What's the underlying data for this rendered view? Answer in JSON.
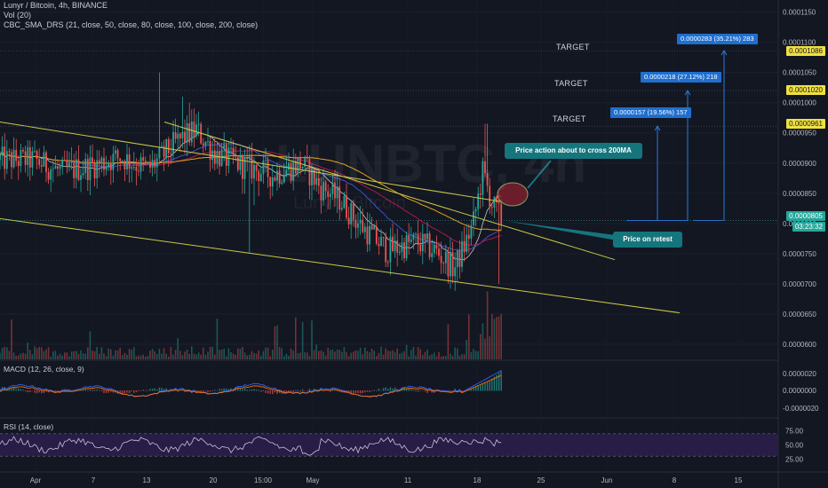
{
  "header": {
    "title": "Lunyr / Bitcoin, 4h, BINANCE",
    "vol": "Vol (20)",
    "sma": "CBC_SMA_DRS (21, close, 50, close, 80, close, 100, close, 200, close)"
  },
  "watermark": {
    "symbol": "LUNBTC, 4h",
    "name": "Lunyr / Bitcoin"
  },
  "macd_label": "MACD (12, 26, close, 9)",
  "rsi_label": "RSI (14, close)",
  "price_tags": {
    "t1086": "0.0001086",
    "t1020": "0.0001020",
    "t961": "0.0000961",
    "t805": "0.0000805",
    "countdown": "03:23:32"
  },
  "targets": [
    "TARGET",
    "TARGET",
    "TARGET"
  ],
  "measures": [
    "0.0000283 (35.21%) 283",
    "0.0000218 (27.12%) 218",
    "0.0000157 (19.56%) 157"
  ],
  "callouts": {
    "ma": "Price action about to cross 200MA",
    "retest": "Price on retest"
  },
  "colors": {
    "background": "#131722",
    "up": "#26a69a",
    "down": "#ef5350",
    "trendline": "#c9c948",
    "callout": "#15757d",
    "measure": "#1e6fd0",
    "rsi_band": "#2b1e4a",
    "macd": "#2962ff",
    "signal": "#ff6d00"
  },
  "chart_data": [
    {
      "type": "candlestick",
      "title": "Lunyr / Bitcoin, 4h, BINANCE",
      "x_ticks": [
        "Apr",
        "7",
        "13",
        "20",
        "15:00",
        "May",
        "11",
        "18",
        "25",
        "Jun",
        "8",
        "15"
      ],
      "y_ticks": [
        "0.0000600",
        "0.0000650",
        "0.0000700",
        "0.0000750",
        "0.0000800",
        "0.0000850",
        "0.0000900",
        "0.0000950",
        "0.0001000",
        "0.0001050",
        "0.0001100",
        "0.0001150"
      ],
      "ylim": [
        5.75e-05,
        0.000117
      ],
      "close_path": [
        [
          "Apr 1",
          9.05e-05
        ],
        [
          "Apr 4",
          8.85e-05
        ],
        [
          "Apr 7",
          8.95e-05
        ],
        [
          "Apr 10",
          9.1e-05
        ],
        [
          "Apr 13",
          8.9e-05
        ],
        [
          "Apr 16",
          9.35e-05
        ],
        [
          "Apr 18",
          9.55e-05
        ],
        [
          "Apr 20",
          9.15e-05
        ],
        [
          "Apr 23",
          8.95e-05
        ],
        [
          "Apr 26",
          8.8e-05
        ],
        [
          "Apr 29",
          9e-05
        ],
        [
          "May 1",
          8.6e-05
        ],
        [
          "May 3",
          8.4e-05
        ],
        [
          "May 5",
          8e-05
        ],
        [
          "May 8",
          7.55e-05
        ],
        [
          "May 11",
          7.7e-05
        ],
        [
          "May 13",
          7.55e-05
        ],
        [
          "May 15",
          7.25e-05
        ],
        [
          "May 16",
          7.6e-05
        ],
        [
          "May 17",
          8e-05
        ],
        [
          "May 18",
          8.85e-05
        ],
        [
          "May 19",
          8.3e-05
        ],
        [
          "May 20",
          8.05e-05
        ]
      ],
      "last_price": 8.05e-05,
      "targets": [
        9.61e-05,
        0.000102,
        0.0001086
      ],
      "measurements": [
        {
          "label": "0.0000157 (19.56%) 157",
          "change": 1.57e-05,
          "percent": 19.56
        },
        {
          "label": "0.0000218 (27.12%) 218",
          "change": 2.18e-05,
          "percent": 27.12
        },
        {
          "label": "0.0000283 (35.21%) 283",
          "change": 2.83e-05,
          "percent": 35.21
        }
      ]
    },
    {
      "type": "line",
      "title": "MACD (12, 26, close, 9)",
      "y_ticks": [
        "0.0000020",
        "0.0000000",
        "-0.0000020"
      ]
    },
    {
      "type": "line",
      "title": "RSI (14, close)",
      "y_ticks": [
        "75.00",
        "50.00",
        "25.00"
      ],
      "band": [
        30,
        70
      ]
    }
  ]
}
